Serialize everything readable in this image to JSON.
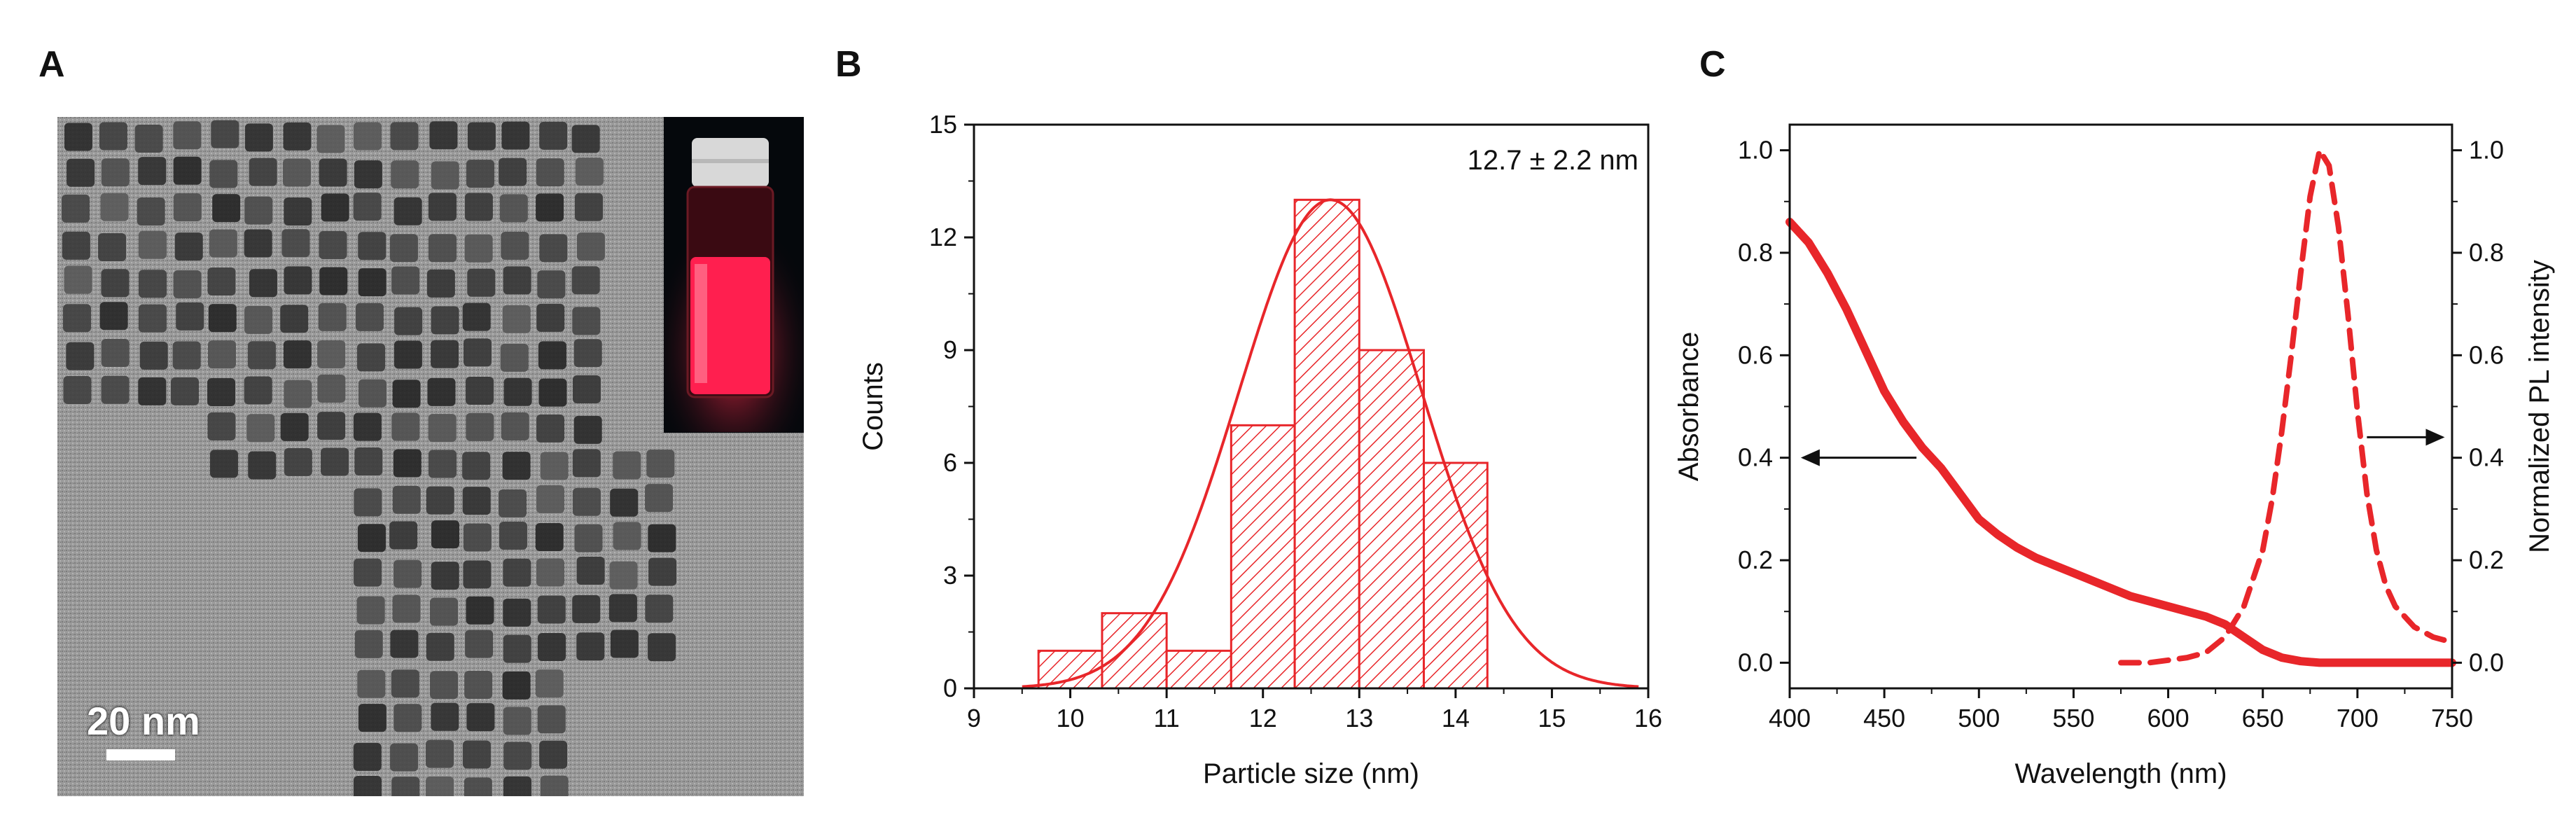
{
  "panels": {
    "a": {
      "label": "A",
      "scale_bar_text": "20 nm",
      "image_description_icon": "tem-micrograph-icon",
      "inset_icon": "vial-icon"
    },
    "b": {
      "label": "B"
    },
    "c": {
      "label": "C"
    }
  },
  "chart_data": [
    {
      "type": "bar",
      "panel": "B",
      "annotation": "12.7 ± 2.2 nm",
      "xlabel": "Particle size (nm)",
      "ylabel": "Counts",
      "xlim": [
        9,
        16
      ],
      "ylim": [
        0,
        15
      ],
      "xticks": [
        "9",
        "10",
        "11",
        "12",
        "13",
        "14",
        "15",
        "16"
      ],
      "yticks": [
        "0",
        "3",
        "6",
        "9",
        "12",
        "15"
      ],
      "bins": [
        {
          "start": 9.67,
          "end": 10.33,
          "count": 1
        },
        {
          "start": 10.33,
          "end": 11.0,
          "count": 2
        },
        {
          "start": 11.0,
          "end": 11.67,
          "count": 1
        },
        {
          "start": 11.67,
          "end": 12.33,
          "count": 7
        },
        {
          "start": 12.33,
          "end": 13.0,
          "count": 13
        },
        {
          "start": 13.0,
          "end": 13.67,
          "count": 9
        },
        {
          "start": 13.67,
          "end": 14.33,
          "count": 6
        }
      ],
      "fit": {
        "type": "gaussian",
        "mean": 12.7,
        "amplitude": 13,
        "sigma": 0.95,
        "x_range": [
          9.5,
          15.9
        ]
      },
      "color": "#e8262a"
    },
    {
      "type": "line",
      "panel": "C",
      "xlabel": "Wavelength (nm)",
      "ylabel": "Absorbance",
      "y2label": "Normalized PL intensity",
      "xlim": [
        400,
        750
      ],
      "ylim": [
        -0.05,
        1.05
      ],
      "y2lim": [
        -0.05,
        1.05
      ],
      "xticks": [
        "400",
        "450",
        "500",
        "550",
        "600",
        "650",
        "700",
        "750"
      ],
      "yticks": [
        "0.0",
        "0.2",
        "0.4",
        "0.6",
        "0.8",
        "1.0"
      ],
      "y2ticks": [
        "0.0",
        "0.2",
        "0.4",
        "0.6",
        "0.8",
        "1.0"
      ],
      "series": [
        {
          "name": "Absorbance",
          "axis": "left",
          "style": "solid",
          "x": [
            400,
            410,
            420,
            430,
            440,
            450,
            460,
            470,
            480,
            490,
            500,
            510,
            520,
            530,
            540,
            550,
            560,
            570,
            580,
            590,
            600,
            610,
            620,
            630,
            640,
            650,
            660,
            670,
            680,
            690,
            700,
            720,
            740,
            750
          ],
          "y": [
            0.86,
            0.82,
            0.76,
            0.69,
            0.61,
            0.53,
            0.47,
            0.42,
            0.38,
            0.33,
            0.28,
            0.25,
            0.225,
            0.205,
            0.19,
            0.175,
            0.16,
            0.145,
            0.13,
            0.12,
            0.11,
            0.1,
            0.09,
            0.075,
            0.05,
            0.025,
            0.01,
            0.003,
            0.0,
            0.0,
            0.0,
            0.0,
            0.0,
            0.0
          ]
        },
        {
          "name": "PL",
          "axis": "right",
          "style": "dashed",
          "x": [
            575,
            590,
            600,
            610,
            620,
            630,
            640,
            650,
            655,
            660,
            665,
            670,
            675,
            680,
            685,
            690,
            695,
            700,
            705,
            710,
            715,
            720,
            730,
            740,
            750
          ],
          "y": [
            0.0,
            0.0,
            0.005,
            0.01,
            0.02,
            0.05,
            0.11,
            0.22,
            0.32,
            0.45,
            0.6,
            0.76,
            0.91,
            1.0,
            0.97,
            0.85,
            0.68,
            0.49,
            0.33,
            0.22,
            0.15,
            0.11,
            0.07,
            0.05,
            0.04
          ]
        }
      ],
      "arrows": [
        {
          "direction": "left",
          "points_to": "Absorbance",
          "at_wavelength": 445,
          "at_value": 0.4
        },
        {
          "direction": "right",
          "points_to": "Normalized PL intensity",
          "at_wavelength": 730,
          "at_value": 0.44
        }
      ],
      "color": "#e8262a"
    }
  ]
}
